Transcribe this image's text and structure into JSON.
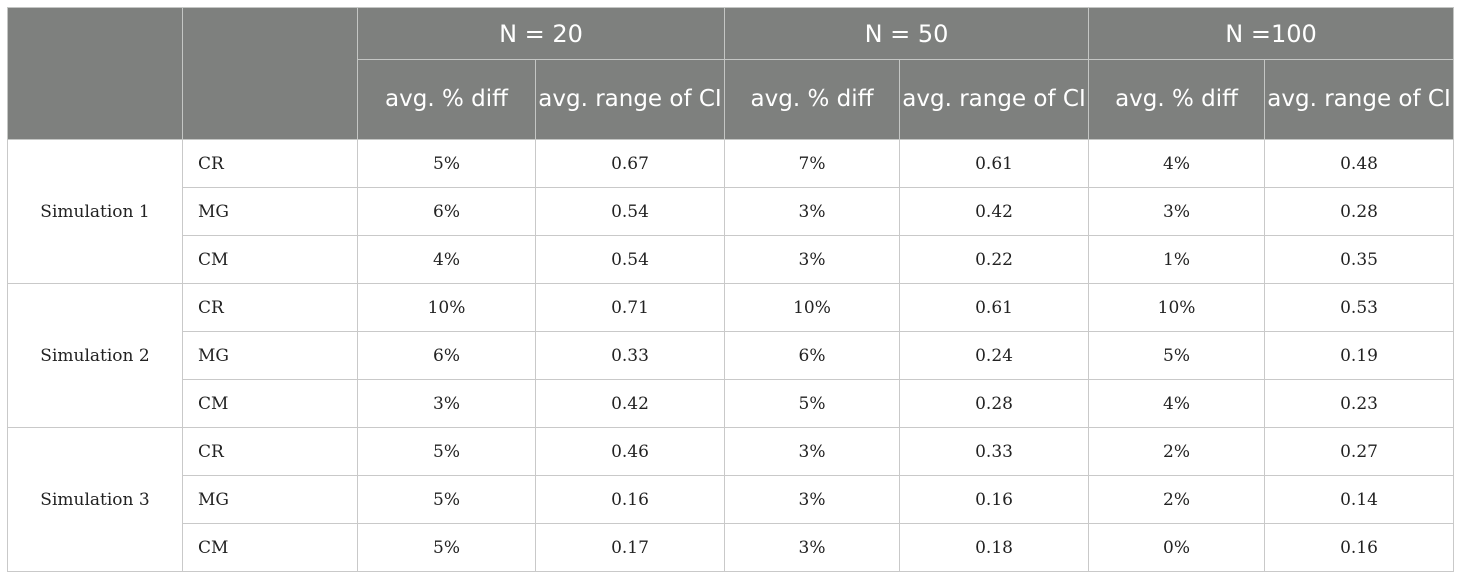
{
  "header": {
    "groups": [
      "N = 20",
      "N = 50",
      "N =100"
    ],
    "subheaders": [
      "avg. % diff",
      "avg. range of CI",
      "avg. % diff",
      "avg. range of CI",
      "avg. % diff",
      "avg. range of CI"
    ]
  },
  "simulations": [
    {
      "label": "Simulation 1",
      "rows": [
        {
          "method": "CR",
          "values": [
            "5%",
            "0.67",
            "7%",
            "0.61",
            "4%",
            "0.48"
          ]
        },
        {
          "method": "MG",
          "values": [
            "6%",
            "0.54",
            "3%",
            "0.42",
            "3%",
            "0.28"
          ]
        },
        {
          "method": "CM",
          "values": [
            "4%",
            "0.54",
            "3%",
            "0.22",
            "1%",
            "0.35"
          ]
        }
      ]
    },
    {
      "label": "Simulation 2",
      "rows": [
        {
          "method": "CR",
          "values": [
            "10%",
            "0.71",
            "10%",
            "0.61",
            "10%",
            "0.53"
          ]
        },
        {
          "method": "MG",
          "values": [
            "6%",
            "0.33",
            "6%",
            "0.24",
            "5%",
            "0.19"
          ]
        },
        {
          "method": "CM",
          "values": [
            "3%",
            "0.42",
            "5%",
            "0.28",
            "4%",
            "0.23"
          ]
        }
      ]
    },
    {
      "label": "Simulation 3",
      "rows": [
        {
          "method": "CR",
          "values": [
            "5%",
            "0.46",
            "3%",
            "0.33",
            "2%",
            "0.27"
          ]
        },
        {
          "method": "MG",
          "values": [
            "5%",
            "0.16",
            "3%",
            "0.16",
            "2%",
            "0.14"
          ]
        },
        {
          "method": "CM",
          "values": [
            "5%",
            "0.17",
            "3%",
            "0.18",
            "0%",
            "0.16"
          ]
        }
      ]
    }
  ]
}
